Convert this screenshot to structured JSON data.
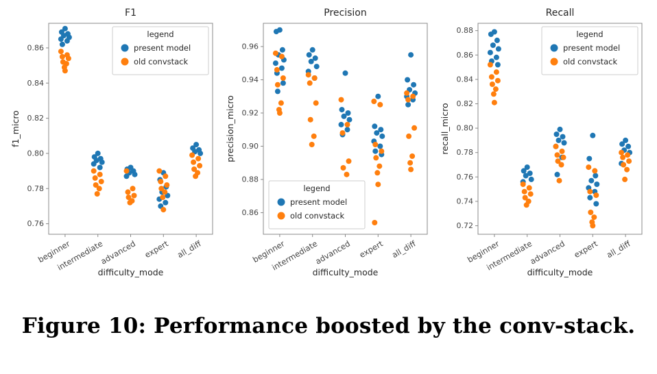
{
  "caption": "Figure 10: Performance boosted by the conv-stack.",
  "colors": {
    "present_model": "#1f77b4",
    "old_convstack": "#ff7f0e",
    "axis": "#888888",
    "text": "#262626",
    "tick_text": "#444444",
    "legend_border": "#cccccc"
  },
  "chart_data": [
    {
      "type": "scatter",
      "title": "F1",
      "xlabel": "difficulty_mode",
      "ylabel": "f1_micro",
      "categories": [
        "beginner",
        "intermediate",
        "advanced",
        "expert",
        "all_diff"
      ],
      "ylim": [
        0.754,
        0.874
      ],
      "yticks": [
        0.76,
        0.78,
        0.8,
        0.82,
        0.84,
        0.86
      ],
      "grid": false,
      "legend": {
        "title": "legend",
        "position": "top-right"
      },
      "series": [
        {
          "name": "present model",
          "color": "#1f77b4",
          "values": [
            [
              0.871,
              0.869,
              0.868,
              0.867,
              0.866,
              0.865,
              0.864,
              0.862
            ],
            [
              0.8,
              0.798,
              0.797,
              0.796,
              0.795,
              0.794,
              0.792
            ],
            [
              0.792,
              0.791,
              0.79,
              0.789,
              0.788,
              0.787
            ],
            [
              0.789,
              0.785,
              0.781,
              0.778,
              0.776,
              0.774,
              0.772,
              0.77
            ],
            [
              0.805,
              0.803,
              0.802,
              0.801,
              0.8
            ]
          ]
        },
        {
          "name": "old convstack",
          "color": "#ff7f0e",
          "values": [
            [
              0.858,
              0.856,
              0.855,
              0.854,
              0.852,
              0.851,
              0.849,
              0.847
            ],
            [
              0.79,
              0.788,
              0.786,
              0.784,
              0.782,
              0.78,
              0.777
            ],
            [
              0.79,
              0.78,
              0.778,
              0.776,
              0.775,
              0.773,
              0.772
            ],
            [
              0.79,
              0.787,
              0.784,
              0.782,
              0.78,
              0.778,
              0.775,
              0.768
            ],
            [
              0.799,
              0.797,
              0.795,
              0.793,
              0.791,
              0.789,
              0.787
            ]
          ]
        }
      ]
    },
    {
      "type": "scatter",
      "title": "Precision",
      "xlabel": "difficulty_mode",
      "ylabel": "precision_micro",
      "categories": [
        "beginner",
        "intermediate",
        "advanced",
        "expert",
        "all_diff"
      ],
      "ylim": [
        0.847,
        0.974
      ],
      "yticks": [
        0.86,
        0.88,
        0.9,
        0.92,
        0.94,
        0.96
      ],
      "grid": false,
      "legend": {
        "title": "legend",
        "position": "bottom-left"
      },
      "series": [
        {
          "name": "present model",
          "color": "#1f77b4",
          "values": [
            [
              0.97,
              0.969,
              0.958,
              0.955,
              0.952,
              0.95,
              0.947,
              0.944,
              0.938,
              0.933
            ],
            [
              0.958,
              0.955,
              0.953,
              0.951,
              0.948,
              0.945,
              0.941
            ],
            [
              0.944,
              0.922,
              0.92,
              0.918,
              0.916,
              0.913,
              0.91,
              0.907
            ],
            [
              0.93,
              0.912,
              0.91,
              0.908,
              0.906,
              0.903,
              0.9,
              0.897,
              0.895
            ],
            [
              0.955,
              0.94,
              0.937,
              0.934,
              0.932,
              0.93,
              0.928,
              0.925
            ]
          ]
        },
        {
          "name": "old convstack",
          "color": "#ff7f0e",
          "values": [
            [
              0.956,
              0.954,
              0.946,
              0.941,
              0.937,
              0.926,
              0.922,
              0.92
            ],
            [
              0.943,
              0.941,
              0.938,
              0.926,
              0.916,
              0.906,
              0.901
            ],
            [
              0.928,
              0.913,
              0.908,
              0.891,
              0.887,
              0.883
            ],
            [
              0.927,
              0.925,
              0.901,
              0.897,
              0.893,
              0.888,
              0.884,
              0.877,
              0.854
            ],
            [
              0.932,
              0.93,
              0.928,
              0.911,
              0.906,
              0.894,
              0.89,
              0.886
            ]
          ]
        }
      ]
    },
    {
      "type": "scatter",
      "title": "Recall",
      "xlabel": "difficulty_mode",
      "ylabel": "recall_micro",
      "categories": [
        "beginner",
        "intermediate",
        "advanced",
        "expert",
        "all_diff"
      ],
      "ylim": [
        0.713,
        0.886
      ],
      "yticks": [
        0.72,
        0.74,
        0.76,
        0.78,
        0.8,
        0.82,
        0.84,
        0.86,
        0.88
      ],
      "grid": false,
      "legend": {
        "title": "legend",
        "position": "top-right"
      },
      "series": [
        {
          "name": "present model",
          "color": "#1f77b4",
          "values": [
            [
              0.879,
              0.877,
              0.872,
              0.868,
              0.865,
              0.862,
              0.858,
              0.855,
              0.852
            ],
            [
              0.768,
              0.765,
              0.763,
              0.761,
              0.758,
              0.756
            ],
            [
              0.799,
              0.795,
              0.793,
              0.79,
              0.788,
              0.785,
              0.776,
              0.762
            ],
            [
              0.794,
              0.775,
              0.761,
              0.757,
              0.754,
              0.751,
              0.748,
              0.743,
              0.738
            ],
            [
              0.79,
              0.787,
              0.785,
              0.782,
              0.78,
              0.771
            ]
          ]
        },
        {
          "name": "old convstack",
          "color": "#ff7f0e",
          "values": [
            [
              0.852,
              0.846,
              0.842,
              0.839,
              0.836,
              0.832,
              0.828,
              0.821
            ],
            [
              0.754,
              0.751,
              0.748,
              0.746,
              0.743,
              0.74,
              0.737
            ],
            [
              0.785,
              0.781,
              0.778,
              0.776,
              0.773,
              0.77,
              0.757
            ],
            [
              0.768,
              0.765,
              0.748,
              0.745,
              0.731,
              0.727,
              0.723,
              0.72
            ],
            [
              0.78,
              0.778,
              0.776,
              0.773,
              0.77,
              0.766,
              0.758
            ]
          ]
        }
      ]
    }
  ]
}
